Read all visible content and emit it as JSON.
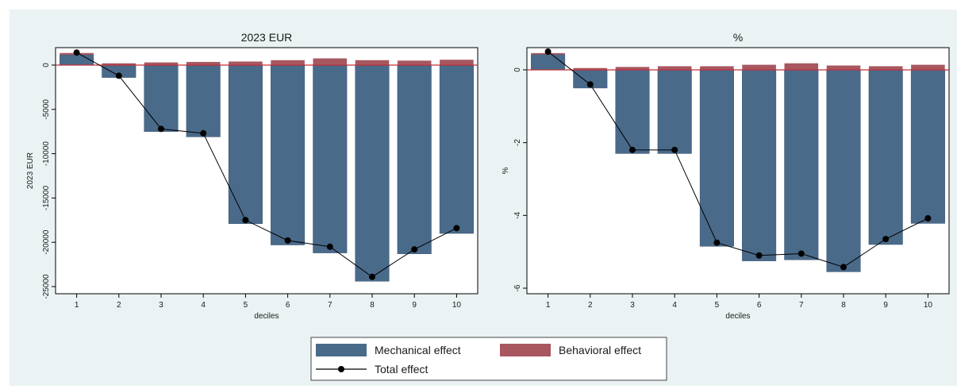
{
  "chart_data": [
    {
      "type": "bar",
      "title": "2023 EUR",
      "xlabel": "deciles",
      "ylabel": "2023 EUR",
      "categories": [
        "1",
        "2",
        "3",
        "4",
        "5",
        "6",
        "7",
        "8",
        "9",
        "10"
      ],
      "ylim": [
        -25000,
        0
      ],
      "yticks": [
        0,
        -5000,
        -10000,
        -15000,
        -20000,
        -25000
      ],
      "ytick_labels": [
        "0",
        "-5000",
        "-10000",
        "-15000",
        "-20000",
        "-25000"
      ],
      "series": [
        {
          "name": "Mechanical effect",
          "kind": "bar",
          "color": "#4a6a8a",
          "values": [
            1150,
            -1400,
            -7500,
            -8100,
            -17900,
            -20300,
            -21200,
            -24400,
            -21300,
            -19000
          ]
        },
        {
          "name": "Behavioral effect",
          "kind": "bar",
          "color": "#a8575f",
          "values": [
            200,
            200,
            300,
            350,
            400,
            550,
            750,
            550,
            500,
            600
          ]
        },
        {
          "name": "Total effect",
          "kind": "line",
          "color": "#000000",
          "values": [
            1400,
            -1200,
            -7200,
            -7700,
            -17500,
            -19800,
            -20500,
            -23900,
            -20800,
            -18400
          ]
        }
      ],
      "zero_line": {
        "value": 0,
        "color": "#c0303a"
      },
      "grid": false
    },
    {
      "type": "bar",
      "title": "%",
      "xlabel": "deciles",
      "ylabel": "%",
      "categories": [
        "1",
        "2",
        "3",
        "4",
        "5",
        "6",
        "7",
        "8",
        "9",
        "10"
      ],
      "ylim": [
        -6,
        0.6
      ],
      "yticks": [
        0,
        -2,
        -4,
        -6
      ],
      "ytick_labels": [
        "0",
        "-2",
        "-4",
        "-6"
      ],
      "series": [
        {
          "name": "Mechanical effect",
          "kind": "bar",
          "color": "#4a6a8a",
          "values": [
            0.42,
            -0.5,
            -2.3,
            -2.3,
            -4.85,
            -5.25,
            -5.22,
            -5.55,
            -4.8,
            -4.22
          ]
        },
        {
          "name": "Behavioral effect",
          "kind": "bar",
          "color": "#a8575f",
          "values": [
            0.04,
            0.05,
            0.08,
            0.1,
            0.1,
            0.14,
            0.18,
            0.12,
            0.1,
            0.14
          ]
        },
        {
          "name": "Total effect",
          "kind": "line",
          "color": "#000000",
          "values": [
            0.5,
            -0.4,
            -2.2,
            -2.2,
            -4.75,
            -5.1,
            -5.05,
            -5.42,
            -4.65,
            -4.08
          ]
        }
      ],
      "zero_line": {
        "value": 0,
        "color": "#c0303a"
      },
      "grid": false
    }
  ],
  "legend": {
    "placement": "bottom",
    "items": [
      {
        "label": "Mechanical effect",
        "kind": "box",
        "color": "#4a6a8a"
      },
      {
        "label": "Behavioral effect",
        "kind": "box",
        "color": "#a8575f"
      },
      {
        "label": "Total effect",
        "kind": "line-marker",
        "color": "#000000"
      }
    ]
  },
  "colors": {
    "background": "#eaf2f3",
    "plot_bg": "#ffffff",
    "axis": "#000000"
  }
}
